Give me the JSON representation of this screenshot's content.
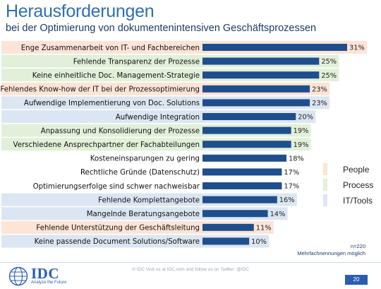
{
  "header": {
    "title": "Herausforderungen",
    "subtitle": "bei der Optimierung von dokumentenintensiven Geschäftsprozessen"
  },
  "colors": {
    "bar": "#1f4e8c",
    "people": "#fce4d6",
    "process": "#e2f0d9",
    "it_tools": "#dce6f2",
    "title": "#2f6fb0"
  },
  "chart_data": {
    "type": "bar",
    "orientation": "horizontal",
    "categories": [
      "Enge Zusammenarbeit von IT- und Fachbereichen",
      "Fehlende Transparenz der Prozesse",
      "Keine einheitliche Doc. Management-Strategie",
      "Fehlendes Know-how der IT bei der Prozessoptimierung",
      "Aufwendige Implementierung von Doc. Solutions",
      "Aufwendige Integration",
      "Anpassung und Konsolidierung der Prozesse",
      "Verschiedene Ansprechpartner der Fachabteilungen",
      "Kosteneinsparungen zu gering",
      "Rechtliche Gründe (Datenschutz)",
      "Optimierungserfolge sind schwer nachweisbar",
      "Fehlende Komplettangebote",
      "Mangelnde Beratungsangebote",
      "Fehlende Unterstützung der Geschäftsleitung",
      "Keine passende Document Solutions/Software"
    ],
    "values": [
      31,
      25,
      25,
      23,
      23,
      20,
      19,
      19,
      18,
      17,
      17,
      16,
      14,
      11,
      10
    ],
    "value_labels": [
      "31%",
      "25%",
      "25%",
      "23%",
      "23%",
      "20%",
      "19%",
      "19%",
      "18%",
      "17%",
      "17%",
      "16%",
      "14%",
      "11%",
      "10%"
    ],
    "groups": [
      "people",
      "process",
      "process",
      "people",
      "it_tools",
      "it_tools",
      "process",
      "process",
      "none",
      "none",
      "none",
      "it_tools",
      "it_tools",
      "people",
      "it_tools"
    ],
    "xlim": [
      0,
      31
    ],
    "legend": [
      {
        "key": "people",
        "label": "People"
      },
      {
        "key": "process",
        "label": "Process"
      },
      {
        "key": "it_tools",
        "label": "IT/Tools"
      }
    ],
    "legend_position": "right"
  },
  "note": {
    "n": "n=220",
    "multi": "Mehrfachnennungen möglich"
  },
  "footer": {
    "text": "© IDC   Visit us at IDC.com and follow us on Twitter: @IDC",
    "logo_word": "IDC",
    "logo_tagline": "Analyze the Future",
    "page_number": "20"
  }
}
